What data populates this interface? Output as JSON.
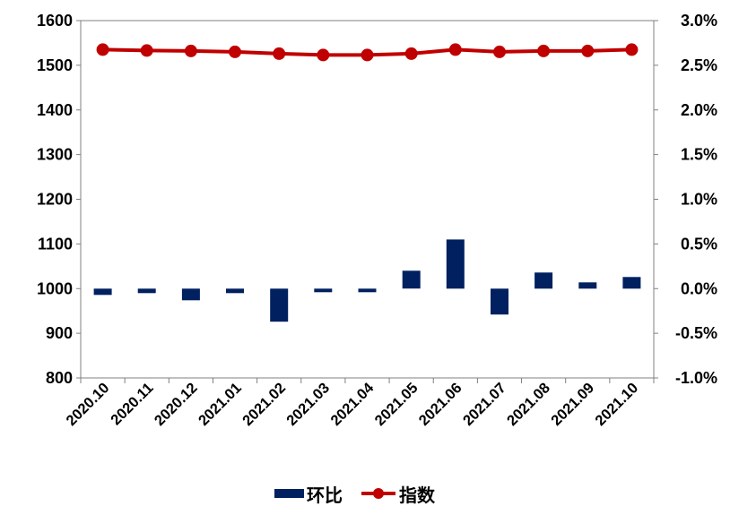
{
  "chart_data": {
    "type": "bar",
    "categories": [
      "2020.10",
      "2020.11",
      "2020.12",
      "2021.01",
      "2021.02",
      "2021.03",
      "2021.04",
      "2021.05",
      "2021.06",
      "2021.07",
      "2021.08",
      "2021.09",
      "2021.10"
    ],
    "series": [
      {
        "name": "环比",
        "type": "bar",
        "axis": "right",
        "color": "#002060",
        "values": [
          -0.07,
          -0.05,
          -0.13,
          -0.05,
          -0.37,
          -0.04,
          -0.04,
          0.2,
          0.55,
          -0.29,
          0.18,
          0.07,
          0.13
        ]
      },
      {
        "name": "指数",
        "type": "line",
        "axis": "left",
        "color": "#C00000",
        "values": [
          1535,
          1533,
          1532,
          1530,
          1526,
          1523,
          1523,
          1526,
          1535,
          1530,
          1532,
          1532,
          1535
        ]
      }
    ],
    "y_left": {
      "ylim": [
        800,
        1600
      ],
      "ticks": [
        "800",
        "900",
        "1000",
        "1100",
        "1200",
        "1300",
        "1400",
        "1500",
        "1600"
      ]
    },
    "y_right": {
      "ylim": [
        -1.0,
        3.0
      ],
      "ticks": [
        "-1.0%",
        "-0.5%",
        "0.0%",
        "0.5%",
        "1.0%",
        "1.5%",
        "2.0%",
        "2.5%",
        "3.0%"
      ]
    },
    "legend": {
      "placement": "bottom"
    },
    "grid": false
  }
}
